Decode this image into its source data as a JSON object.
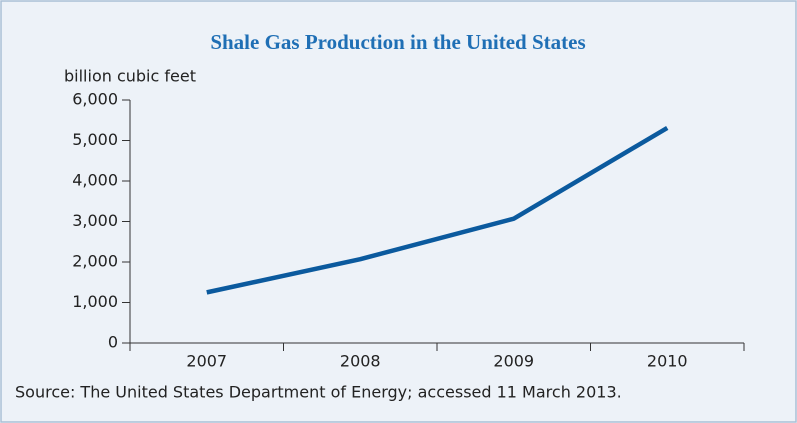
{
  "chart_data": {
    "type": "line",
    "title": "Shale Gas Production in the United States",
    "ylabel": "billion cubic feet",
    "source": "Source: The United States Department of Energy; accessed 11 March 2013.",
    "categories": [
      "2007",
      "2008",
      "2009",
      "2010"
    ],
    "values": [
      1250,
      2070,
      3070,
      5310
    ],
    "color": "#0b5a9e",
    "ylim": [
      0,
      6000
    ],
    "yticks": [
      0,
      {
        "value": 1000,
        "label": "1,000"
      },
      {
        "value": 2000,
        "label": "2,000"
      },
      {
        "value": 3000,
        "label": "3,000"
      },
      {
        "value": 4000,
        "label": "4,000"
      },
      {
        "value": 5000,
        "label": "5,000"
      },
      {
        "value": 6000,
        "label": "6,000"
      }
    ],
    "grid": false
  }
}
